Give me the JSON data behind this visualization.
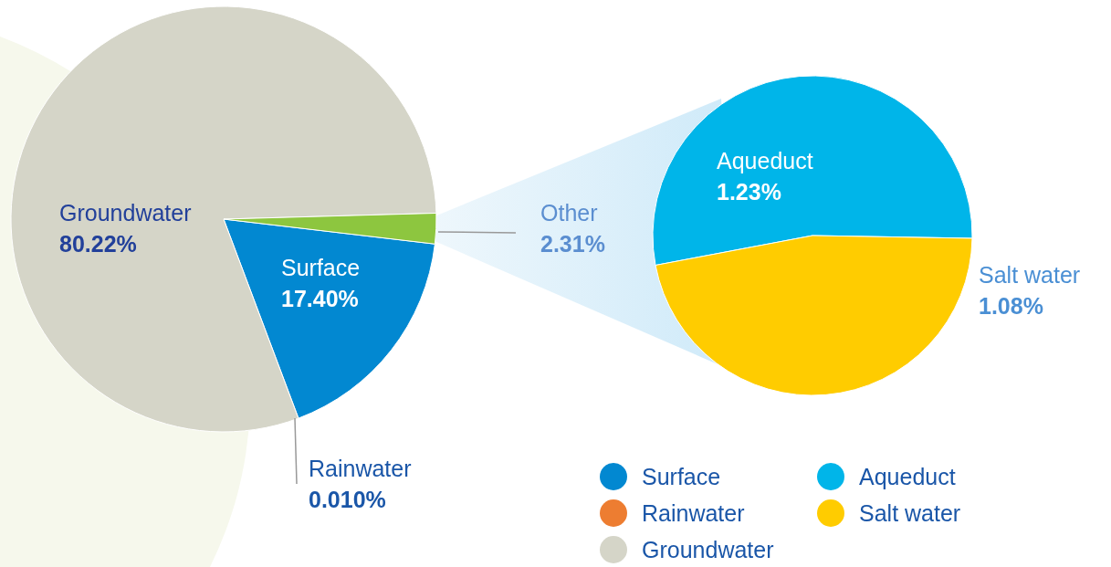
{
  "chart_data": [
    {
      "type": "pie",
      "categories": [
        "Surface",
        "Rainwater",
        "Groundwater",
        "Other"
      ],
      "values": [
        17.4,
        0.01,
        80.22,
        2.31
      ],
      "value_labels": [
        "17.40%",
        "0.010%",
        "80.22%",
        "2.31%"
      ],
      "colors": [
        "#0288d1",
        "#ed7d31",
        "#d5d5c8",
        "#8dc63f"
      ],
      "legend": "bottom"
    },
    {
      "type": "pie",
      "categories": [
        "Aqueduct",
        "Salt water"
      ],
      "values": [
        1.23,
        1.08
      ],
      "value_labels": [
        "1.23%",
        "1.08%"
      ],
      "colors": [
        "#00b5e9",
        "#ffcc00"
      ],
      "legend": "bottom"
    }
  ]
}
